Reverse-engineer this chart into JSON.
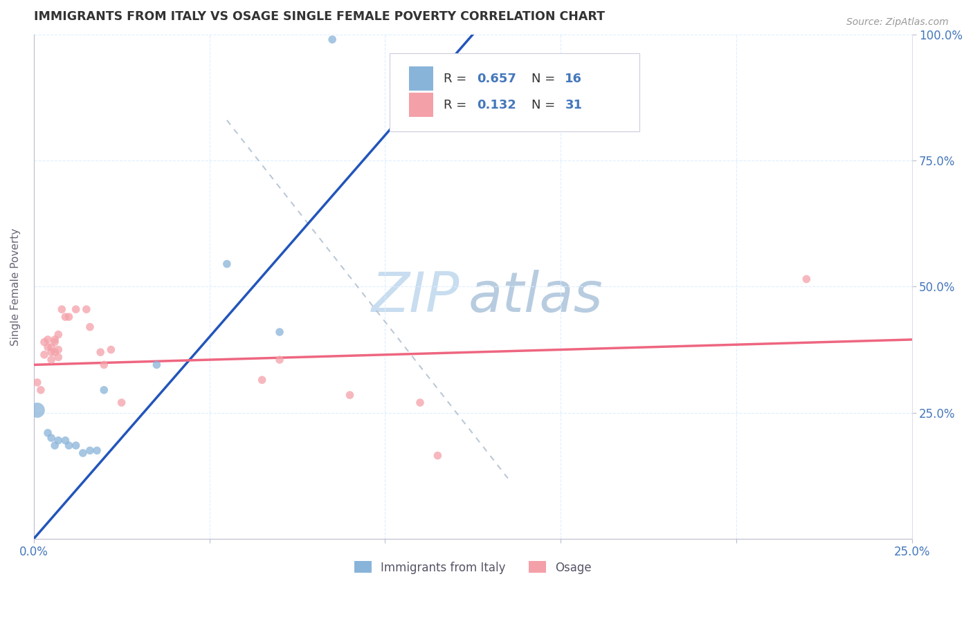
{
  "title": "IMMIGRANTS FROM ITALY VS OSAGE SINGLE FEMALE POVERTY CORRELATION CHART",
  "source": "Source: ZipAtlas.com",
  "ylabel": "Single Female Poverty",
  "xlim": [
    0.0,
    0.25
  ],
  "ylim": [
    0.0,
    1.0
  ],
  "legend_blue_label": "Immigrants from Italy",
  "legend_pink_label": "Osage",
  "blue_color": "#89B4D9",
  "pink_color": "#F4A0A8",
  "blue_line_color": "#2255BB",
  "pink_line_color": "#EE6680",
  "ref_line_color": "#AABBCC",
  "blue_line_x0": 0.0,
  "blue_line_y0": 0.0,
  "blue_line_x1": 0.09,
  "blue_line_y1": 0.72,
  "pink_line_x0": 0.0,
  "pink_line_y0": 0.345,
  "pink_line_x1": 0.25,
  "pink_line_y1": 0.395,
  "ref_line_x0": 0.055,
  "ref_line_y0": 0.83,
  "ref_line_x1": 0.135,
  "ref_line_y1": 0.12,
  "italy_points": [
    [
      0.001,
      0.255,
      250
    ],
    [
      0.004,
      0.21,
      70
    ],
    [
      0.005,
      0.2,
      70
    ],
    [
      0.006,
      0.185,
      70
    ],
    [
      0.007,
      0.195,
      70
    ],
    [
      0.009,
      0.195,
      70
    ],
    [
      0.01,
      0.185,
      70
    ],
    [
      0.012,
      0.185,
      70
    ],
    [
      0.014,
      0.17,
      70
    ],
    [
      0.016,
      0.175,
      70
    ],
    [
      0.018,
      0.175,
      70
    ],
    [
      0.02,
      0.295,
      70
    ],
    [
      0.035,
      0.345,
      70
    ],
    [
      0.055,
      0.545,
      70
    ],
    [
      0.07,
      0.41,
      70
    ],
    [
      0.085,
      0.99,
      70
    ]
  ],
  "osage_points": [
    [
      0.001,
      0.31,
      70
    ],
    [
      0.002,
      0.295,
      70
    ],
    [
      0.003,
      0.365,
      70
    ],
    [
      0.003,
      0.39,
      70
    ],
    [
      0.004,
      0.395,
      70
    ],
    [
      0.004,
      0.38,
      70
    ],
    [
      0.005,
      0.38,
      70
    ],
    [
      0.005,
      0.37,
      70
    ],
    [
      0.005,
      0.355,
      70
    ],
    [
      0.006,
      0.39,
      70
    ],
    [
      0.006,
      0.37,
      70
    ],
    [
      0.006,
      0.395,
      70
    ],
    [
      0.007,
      0.375,
      70
    ],
    [
      0.007,
      0.36,
      70
    ],
    [
      0.007,
      0.405,
      70
    ],
    [
      0.008,
      0.455,
      70
    ],
    [
      0.009,
      0.44,
      70
    ],
    [
      0.01,
      0.44,
      70
    ],
    [
      0.012,
      0.455,
      70
    ],
    [
      0.015,
      0.455,
      70
    ],
    [
      0.016,
      0.42,
      70
    ],
    [
      0.019,
      0.37,
      70
    ],
    [
      0.02,
      0.345,
      70
    ],
    [
      0.022,
      0.375,
      70
    ],
    [
      0.025,
      0.27,
      70
    ],
    [
      0.065,
      0.315,
      70
    ],
    [
      0.07,
      0.355,
      70
    ],
    [
      0.09,
      0.285,
      70
    ],
    [
      0.11,
      0.27,
      70
    ],
    [
      0.115,
      0.165,
      70
    ],
    [
      0.22,
      0.515,
      70
    ]
  ]
}
